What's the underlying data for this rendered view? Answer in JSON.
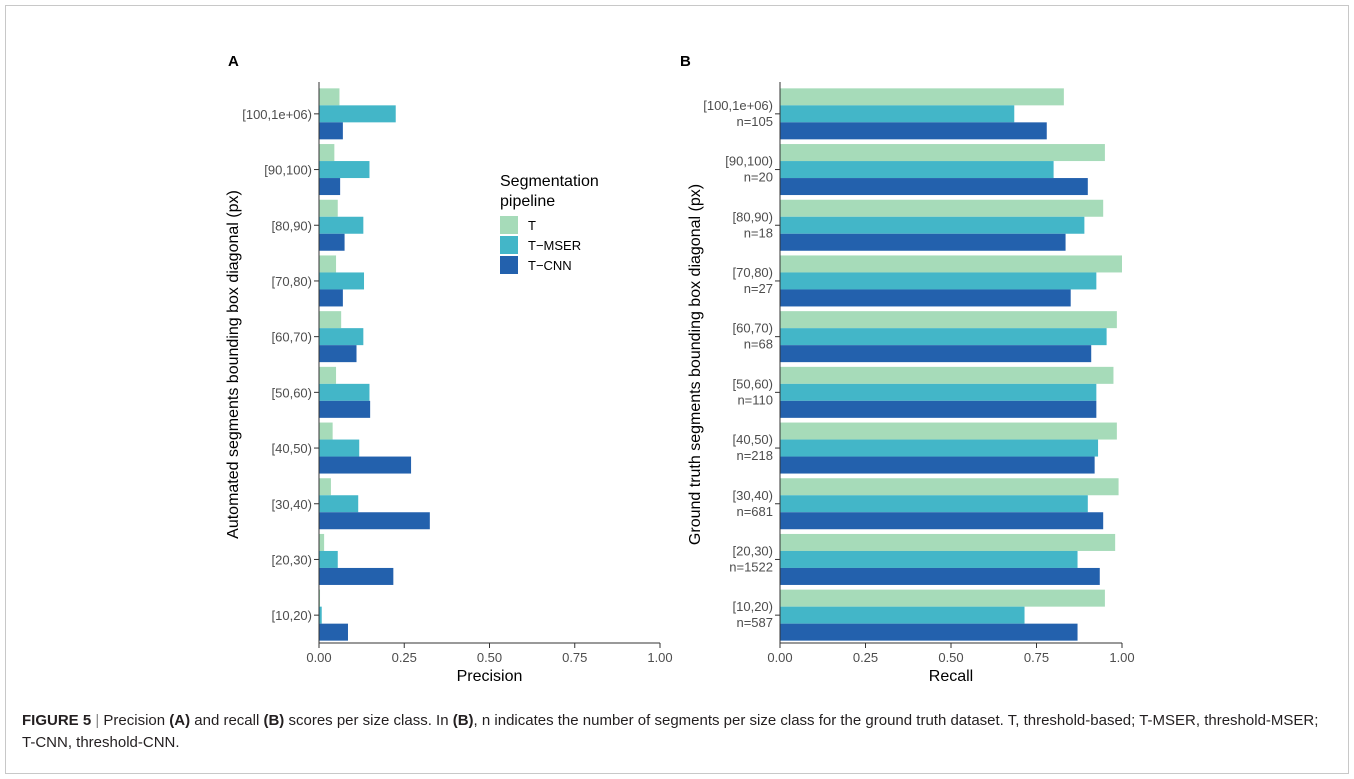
{
  "figure": {
    "caption": {
      "label": "FIGURE 5",
      "sep": " | ",
      "part1": "Precision ",
      "refA1": "(A)",
      "part2": " and recall ",
      "refB1": "(B)",
      "part3": " scores per size class. In ",
      "refB2": "(B)",
      "part4": ", n indicates the number of segments per size class for the ground truth dataset. T, threshold-based; T-MSER, threshold-MSER; T-CNN, threshold-CNN."
    }
  },
  "chart_data": [
    {
      "type": "bar",
      "orientation": "horizontal",
      "panel_label": "A",
      "xlabel": "Precision",
      "ylabel": "Automated segments bounding box diagonal (px)",
      "xlim": [
        0,
        1
      ],
      "xticks": [
        "0.00",
        "0.25",
        "0.50",
        "0.75",
        "1.00"
      ],
      "grid": false,
      "legend": {
        "title_lines": [
          "Segmentation",
          "pipeline"
        ],
        "placement": "right of panel A",
        "entries": [
          "T",
          "T−MSER",
          "T−CNN"
        ]
      },
      "categories": [
        "[100,1e+06)",
        "[90,100)",
        "[80,90)",
        "[70,80)",
        "[60,70)",
        "[50,60)",
        "[40,50)",
        "[30,40)",
        "[20,30)",
        "[10,20)"
      ],
      "series": [
        {
          "name": "T",
          "color": "#a6dbb9",
          "values": [
            0.06,
            0.045,
            0.055,
            0.05,
            0.065,
            0.05,
            0.04,
            0.035,
            0.015,
            0.003
          ]
        },
        {
          "name": "T−MSER",
          "color": "#43b6c8",
          "values": [
            0.225,
            0.148,
            0.13,
            0.132,
            0.13,
            0.148,
            0.118,
            0.115,
            0.055,
            0.008
          ]
        },
        {
          "name": "T−CNN",
          "color": "#2361ad",
          "values": [
            0.07,
            0.062,
            0.075,
            0.07,
            0.11,
            0.15,
            0.27,
            0.325,
            0.218,
            0.085
          ]
        }
      ]
    },
    {
      "type": "bar",
      "orientation": "horizontal",
      "panel_label": "B",
      "xlabel": "Recall",
      "ylabel": "Ground truth segments bounding box diagonal (px)",
      "xlim": [
        0,
        1
      ],
      "xticks": [
        "0.00",
        "0.25",
        "0.50",
        "0.75",
        "1.00"
      ],
      "grid": false,
      "categories": [
        "[100,1e+06)",
        "[90,100)",
        "[80,90)",
        "[70,80)",
        "[60,70)",
        "[50,60)",
        "[40,50)",
        "[30,40)",
        "[20,30)",
        "[10,20)"
      ],
      "category_counts": [
        "n=105",
        "n=20",
        "n=18",
        "n=27",
        "n=68",
        "n=110",
        "n=218",
        "n=681",
        "n=1522",
        "n=587"
      ],
      "series": [
        {
          "name": "T",
          "color": "#a6dbb9",
          "values": [
            0.83,
            0.95,
            0.945,
            1.0,
            0.985,
            0.975,
            0.985,
            0.99,
            0.98,
            0.95
          ]
        },
        {
          "name": "T−MSER",
          "color": "#43b6c8",
          "values": [
            0.685,
            0.8,
            0.89,
            0.925,
            0.955,
            0.925,
            0.93,
            0.9,
            0.87,
            0.715
          ]
        },
        {
          "name": "T−CNN",
          "color": "#2361ad",
          "values": [
            0.78,
            0.9,
            0.835,
            0.85,
            0.91,
            0.925,
            0.92,
            0.945,
            0.935,
            0.87
          ]
        }
      ]
    }
  ]
}
